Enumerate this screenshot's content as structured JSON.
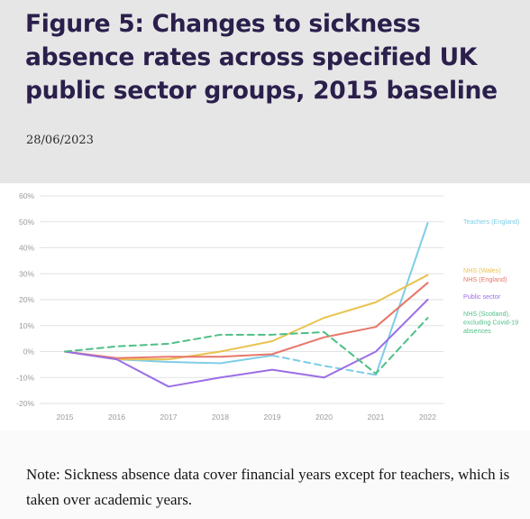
{
  "header": {
    "title": "Figure 5: Changes to sickness absence rates across specified UK public sector groups, 2015 baseline",
    "date": "28/06/2023"
  },
  "footer": {
    "note": "Note: Sickness absence data cover financial years except for teachers, which is taken over academic years."
  },
  "chart_data": {
    "type": "line",
    "x": [
      "2015",
      "2016",
      "2017",
      "2018",
      "2019",
      "2020",
      "2021",
      "2022"
    ],
    "y_ticks": [
      "60%",
      "50%",
      "40%",
      "30%",
      "20%",
      "10%",
      "0%",
      "-10%",
      "-20%"
    ],
    "ylim": [
      -20,
      60
    ],
    "grid": true,
    "legend": "right-end labels",
    "series": [
      {
        "name": "Teachers (England)",
        "label_lines": [
          "Teachers (England)"
        ],
        "color": "#7dcde6",
        "segments": [
          {
            "style": "solid",
            "values": [
              0,
              -3,
              -4,
              -4.5,
              -1.5,
              null,
              null,
              null
            ]
          },
          {
            "style": "dashed",
            "values": [
              null,
              null,
              null,
              null,
              -1.5,
              -5.5,
              -9,
              null
            ]
          },
          {
            "style": "solid",
            "values": [
              null,
              null,
              null,
              null,
              null,
              null,
              -9,
              49.5
            ]
          }
        ]
      },
      {
        "name": "NHS (Wales)",
        "label_lines": [
          "NHS (Wales)"
        ],
        "color": "#e9c34e",
        "segments": [
          {
            "style": "solid",
            "values": [
              0,
              -3,
              -3,
              0,
              4,
              13,
              19,
              29.5
            ]
          }
        ]
      },
      {
        "name": "NHS (England)",
        "label_lines": [
          "NHS (England)"
        ],
        "color": "#e7776a",
        "segments": [
          {
            "style": "solid",
            "values": [
              0,
              -2.5,
              -2,
              -2,
              -1,
              5.5,
              9.5,
              26.5
            ]
          }
        ]
      },
      {
        "name": "Public sector",
        "label_lines": [
          "Public sector"
        ],
        "color": "#9b6ee6",
        "segments": [
          {
            "style": "solid",
            "values": [
              0,
              -3,
              -13.5,
              -10,
              -7,
              -10,
              0,
              20
            ]
          }
        ]
      },
      {
        "name": "NHS (Scotland), excluding Covid-19 absences",
        "label_lines": [
          "NHS (Scotland),",
          "excluding Covid-19",
          "absences"
        ],
        "color": "#4fbf87",
        "segments": [
          {
            "style": "dashed",
            "values": [
              0,
              2,
              3,
              6.5,
              6.5,
              7.5,
              -8.5,
              13
            ]
          }
        ]
      }
    ]
  }
}
